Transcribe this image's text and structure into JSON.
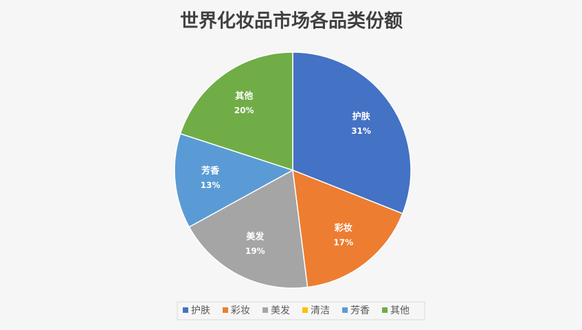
{
  "chart_data": {
    "type": "pie",
    "title": "世界化妆品市场各品类份额",
    "categories": [
      "护肤",
      "彩妆",
      "美发",
      "清洁",
      "芳香",
      "其他"
    ],
    "values": [
      31,
      17,
      19,
      0,
      13,
      20
    ],
    "value_labels": [
      "31%",
      "17%",
      "19%",
      null,
      "13%",
      "20%"
    ],
    "colors": [
      "#4472c4",
      "#ed7d31",
      "#a5a5a5",
      "#ffc000",
      "#5b9bd5",
      "#70ad47"
    ],
    "legend": "bottom"
  }
}
